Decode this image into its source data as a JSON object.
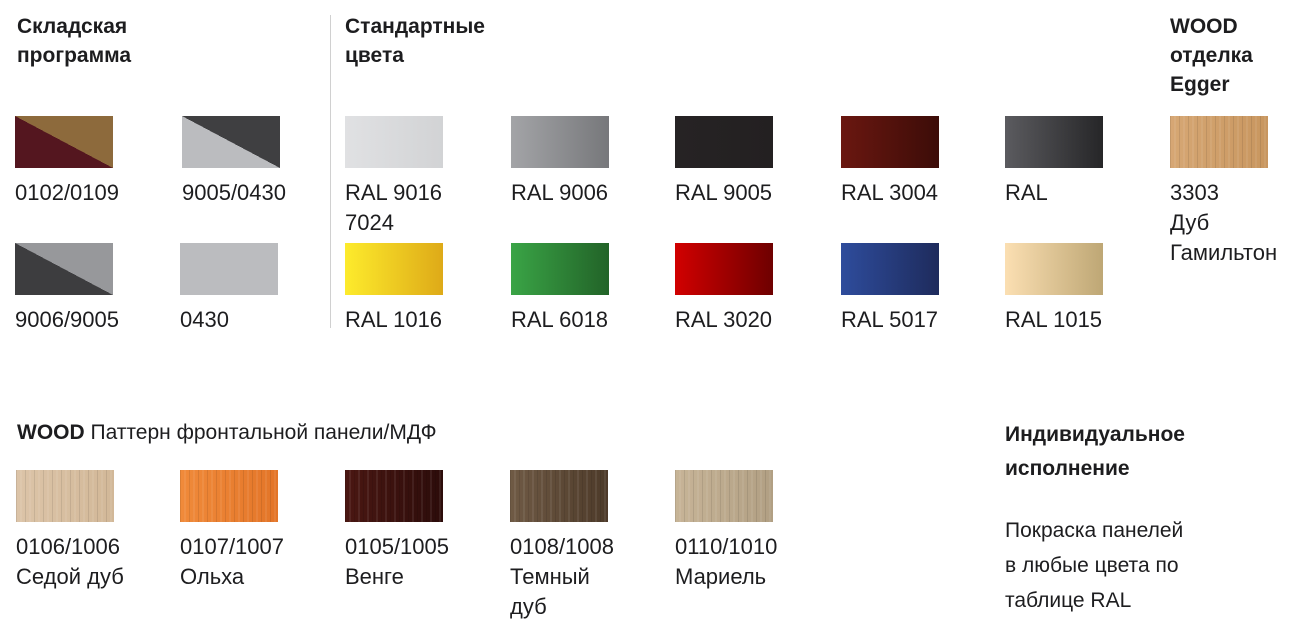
{
  "headings": {
    "stock": "Складская\nпрограмма",
    "standard": "Стандартные\nцвета",
    "egger": "WOOD\nотделка\nEgger"
  },
  "stock": [
    {
      "label": "0102/0109",
      "style": "diagonal",
      "colors": [
        "#8d6a3c",
        "#54161f"
      ]
    },
    {
      "label": "9005/0430",
      "style": "diagonal",
      "colors": [
        "#3f3f41",
        "#bbbcbf"
      ]
    },
    {
      "label": "9006/9005",
      "style": "diagonal",
      "colors": [
        "#97989b",
        "#3d3d3f"
      ]
    },
    {
      "label": "0430",
      "style": "solid",
      "colors": [
        "#bbbcbf",
        "#bbbcbf"
      ]
    }
  ],
  "standard": [
    {
      "label": "RAL 9016\n7024",
      "colors": [
        "#e0e1e3",
        "#d2d3d5"
      ]
    },
    {
      "label": "RAL 9006",
      "colors": [
        "#a3a4a7",
        "#77787b"
      ]
    },
    {
      "label": "RAL 9005",
      "colors": [
        "#262324",
        "#232021"
      ]
    },
    {
      "label": "RAL 3004",
      "colors": [
        "#6a1710",
        "#3c0c08"
      ]
    },
    {
      "label": "RAL",
      "colors": [
        "#5b5b5f",
        "#262628"
      ]
    },
    {
      "label": "RAL 1016",
      "colors": [
        "#fdeb2c",
        "#deaa18"
      ]
    },
    {
      "label": "RAL 6018",
      "colors": [
        "#3aa446",
        "#226328"
      ]
    },
    {
      "label": "RAL 3020",
      "colors": [
        "#d10000",
        "#6e0000"
      ]
    },
    {
      "label": "RAL 5017",
      "colors": [
        "#2e4c9c",
        "#1e2b5c"
      ]
    },
    {
      "label": "RAL 1015",
      "colors": [
        "#fbdfb2",
        "#bea775"
      ]
    }
  ],
  "egger": {
    "label": "3303\nДуб\nГамильтон",
    "colors": [
      "#d6a774",
      "#c8965f"
    ]
  },
  "wood_panel": {
    "title_bold": "WOOD",
    "title_rest": " Паттерн фронтальной панели/МДФ",
    "items": [
      {
        "label": "0106/1006\nСедой дуб",
        "colors": [
          "#dcc4a8",
          "#d2b898"
        ]
      },
      {
        "label": "0107/1007\nОльха",
        "colors": [
          "#f08a3a",
          "#e37528"
        ]
      },
      {
        "label": "0105/1005\nВенге",
        "colors": [
          "#4a1712",
          "#2c0c0a"
        ]
      },
      {
        "label": "0108/1008\nТемный\nдуб",
        "colors": [
          "#6f5a45",
          "#4d3a29"
        ]
      },
      {
        "label": "0110/1010\nМариель",
        "colors": [
          "#c7b497",
          "#b19f83"
        ]
      }
    ]
  },
  "individual": {
    "title": "Индивидуальное\nисполнение",
    "text": "Покраска панелей\nв любые цвета по\nтаблице RAL"
  }
}
